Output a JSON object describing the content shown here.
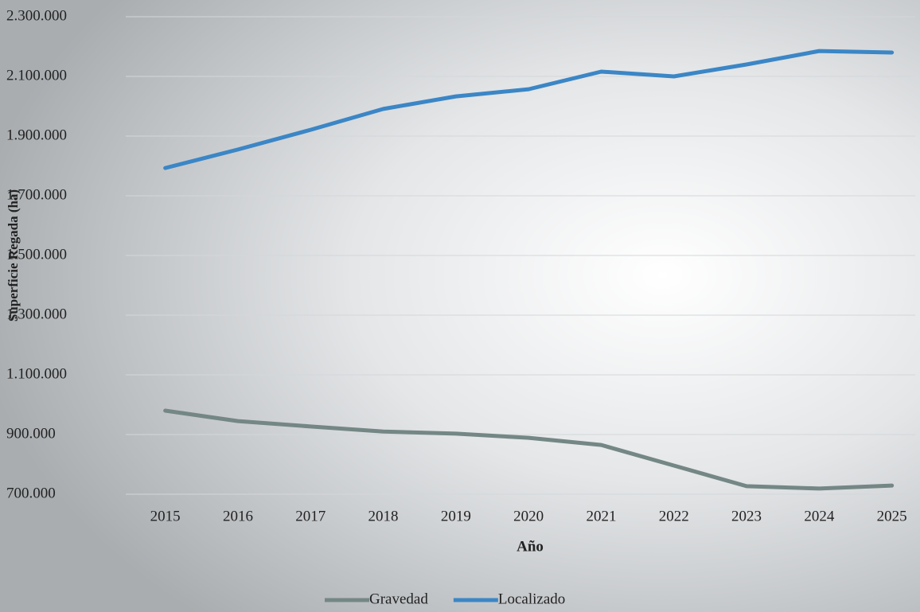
{
  "chart_data": {
    "type": "line",
    "x_label": "Año",
    "y_label": "Superficie Regada (ha)",
    "categories": [
      "2015",
      "2016",
      "2017",
      "2018",
      "2019",
      "2020",
      "2021",
      "2022",
      "2023",
      "2024",
      "2025"
    ],
    "series": [
      {
        "name": "Gravedad",
        "color": "#748784",
        "values": [
          980000,
          945000,
          927000,
          910000,
          903000,
          889000,
          865000,
          796000,
          727000,
          719000,
          729000
        ]
      },
      {
        "name": "Localizado",
        "color": "#3b86c6",
        "values": [
          1793000,
          1855000,
          1921000,
          1991000,
          2033000,
          2057000,
          2116000,
          2100000,
          2140000,
          2185000,
          2180000
        ]
      }
    ],
    "ylim": [
      700000,
      2300000
    ],
    "yticks": [
      {
        "value": 700000,
        "label": "700.000"
      },
      {
        "value": 900000,
        "label": "900.000"
      },
      {
        "value": 1100000,
        "label": "1.100.000"
      },
      {
        "value": 1300000,
        "label": "1.300.000"
      },
      {
        "value": 1500000,
        "label": "1.500.000"
      },
      {
        "value": 1700000,
        "label": "1.700.000"
      },
      {
        "value": 1900000,
        "label": "1.900.000"
      },
      {
        "value": 2100000,
        "label": "2.100.000"
      },
      {
        "value": 2300000,
        "label": "2.300.000"
      }
    ],
    "grid": true,
    "legend": "bottom"
  }
}
